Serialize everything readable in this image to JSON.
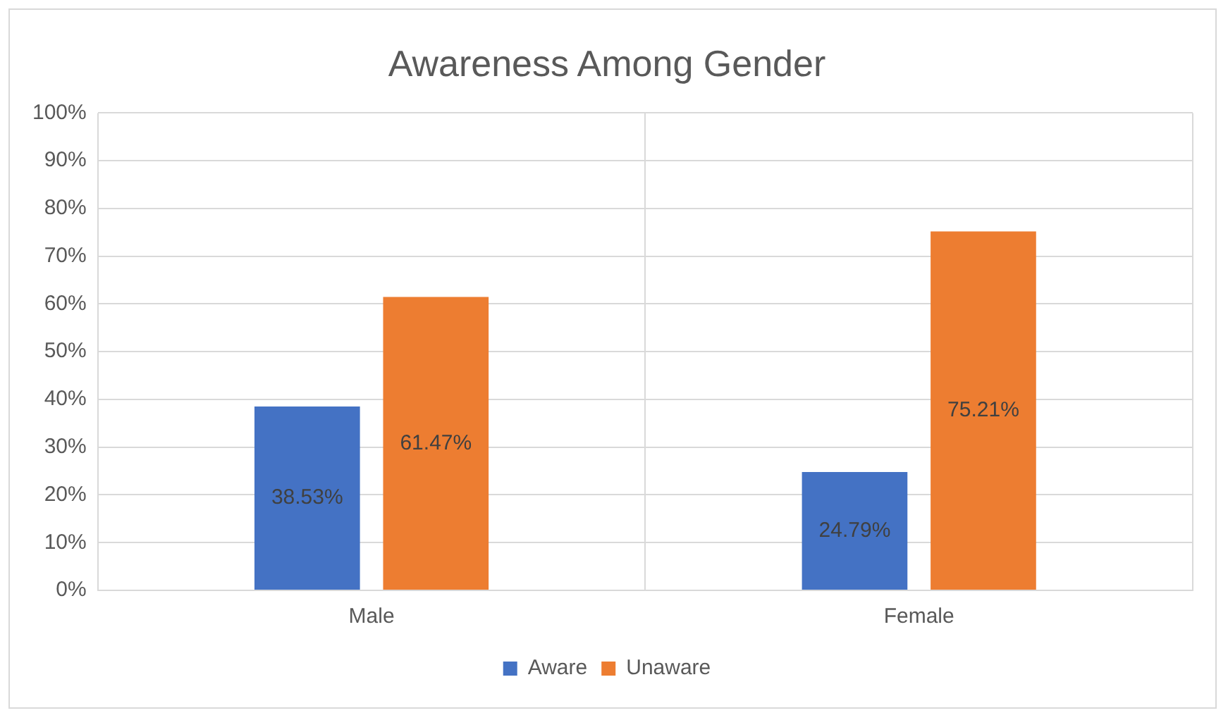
{
  "chart_data": {
    "type": "bar",
    "title": "Awareness Among Gender",
    "categories": [
      "Male",
      "Female"
    ],
    "series": [
      {
        "name": "Aware",
        "color": "#4472c4",
        "values": [
          38.53,
          24.79
        ],
        "value_labels": [
          "38.53%",
          "24.79%"
        ]
      },
      {
        "name": "Unaware",
        "color": "#ed7d31",
        "values": [
          61.47,
          75.21
        ],
        "value_labels": [
          "61.47%",
          "75.21%"
        ]
      }
    ],
    "ylim": [
      0,
      100
    ],
    "yticks": [
      {
        "value": 0,
        "label": "0%"
      },
      {
        "value": 10,
        "label": "10%"
      },
      {
        "value": 20,
        "label": "20%"
      },
      {
        "value": 30,
        "label": "30%"
      },
      {
        "value": 40,
        "label": "40%"
      },
      {
        "value": 50,
        "label": "50%"
      },
      {
        "value": 60,
        "label": "60%"
      },
      {
        "value": 70,
        "label": "70%"
      },
      {
        "value": 80,
        "label": "80%"
      },
      {
        "value": 90,
        "label": "90%"
      },
      {
        "value": 100,
        "label": "100%"
      }
    ],
    "grid": true,
    "legend": "bottom"
  }
}
